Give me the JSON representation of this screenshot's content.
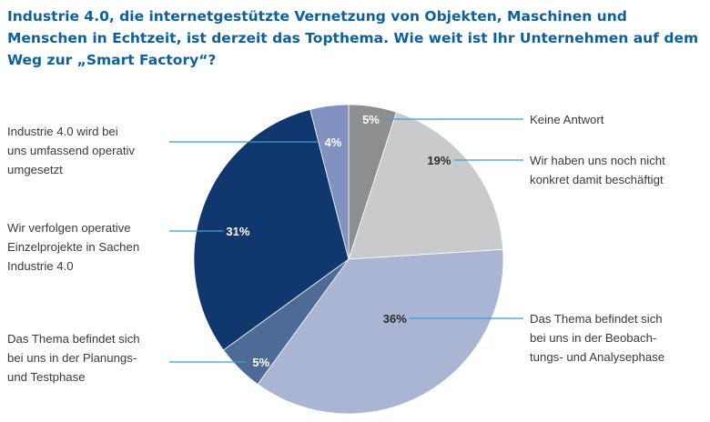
{
  "title": "Industrie 4.0, die internetgestützte Vernetzung von Objekten, Maschinen und Menschen in Echtzeit, ist derzeit das Topthema. Wie weit ist Ihr Unternehmen auf dem Weg zur „Smart Factory“?",
  "chart_data": {
    "type": "pie",
    "start": "top, clockwise",
    "slices": [
      {
        "label": "Keine Antwort",
        "value": 5,
        "pct_label": "5%",
        "color": "#8c8e90"
      },
      {
        "label": "Wir haben uns noch nicht konkret damit beschäftigt",
        "value": 19,
        "pct_label": "19%",
        "color": "#c8cacc"
      },
      {
        "label": "Das Thema befindet sich bei uns in der Beobachtungs- und Analysephase",
        "value": 36,
        "pct_label": "36%",
        "color": "#aab4d3"
      },
      {
        "label": "Das Thema befindet sich bei uns in der Planungs- und Testphase",
        "value": 5,
        "pct_label": "5%",
        "color": "#4e6b98"
      },
      {
        "label": "Wir verfolgen operative Einzelprojekte in Sachen Industrie 4.0",
        "value": 31,
        "pct_label": "31%",
        "color": "#10386e"
      },
      {
        "label": "Industrie 4.0 wird bei uns umfassend operativ umgesetzt",
        "value": 4,
        "pct_label": "4%",
        "color": "#8191c0"
      }
    ]
  },
  "labels": {
    "keine_antwort": [
      "Keine Antwort"
    ],
    "nicht_beschaeftigt": [
      "Wir haben uns noch nicht",
      "konkret damit beschäftigt"
    ],
    "beobachtung": [
      "Das Thema befindet sich",
      "bei uns in der Beobach-",
      "tungs- und Analysephase"
    ],
    "planung": [
      "Das Thema befindet sich",
      "bei uns in der Planungs-",
      "und Testphase"
    ],
    "einzelprojekte": [
      "Wir verfolgen operative",
      "Einzelprojekte in Sachen",
      "Industrie 4.0"
    ],
    "umfassend": [
      "Industrie 4.0 wird bei",
      "uns umfassend operativ",
      "umgesetzt"
    ]
  },
  "line_color": "#3b9dd2"
}
